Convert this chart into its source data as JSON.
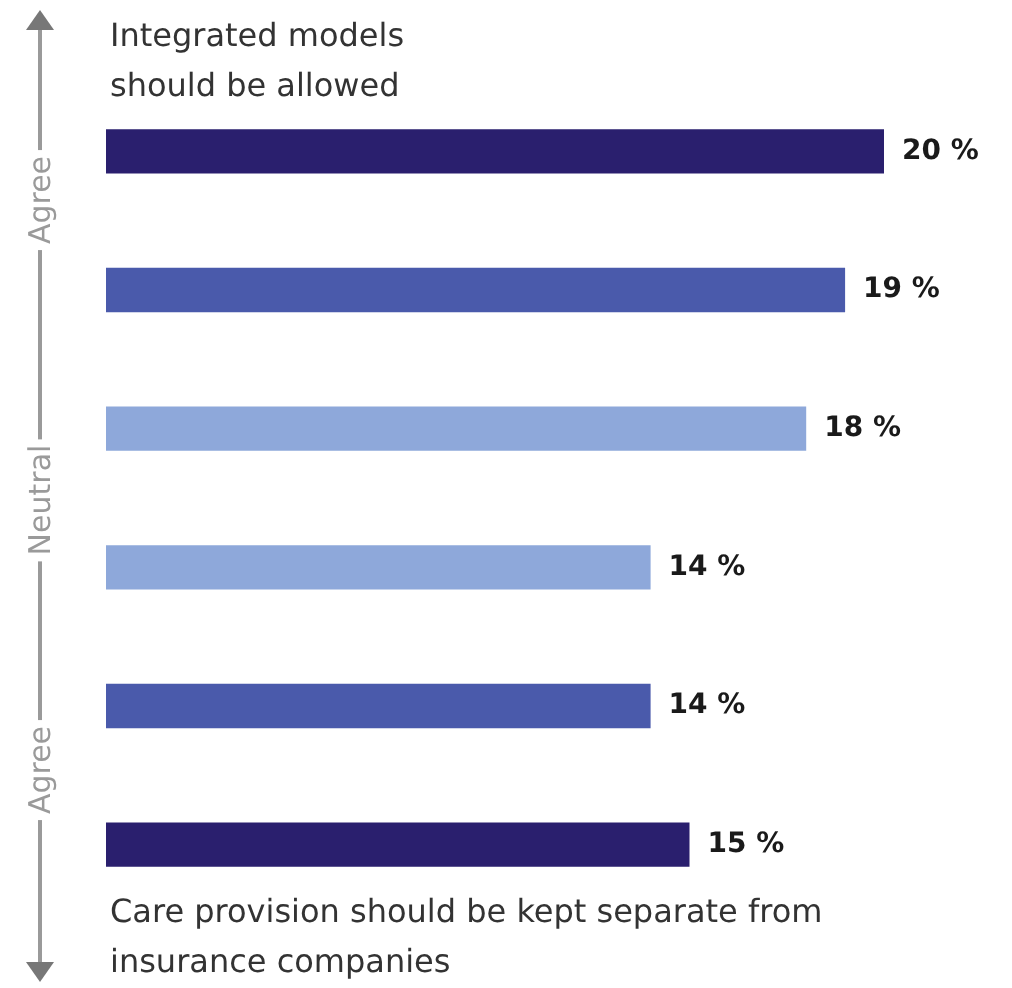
{
  "chart_data": {
    "type": "bar",
    "orientation": "horizontal",
    "categories": [
      null,
      null,
      null,
      null,
      null,
      null
    ],
    "values": [
      20,
      19,
      18,
      14,
      14,
      15
    ],
    "colors": [
      "#2a1f6e",
      "#4a5aab",
      "#8ea8da",
      "#8ea8da",
      "#4a5aab",
      "#2a1f6e"
    ],
    "value_labels": [
      "20 %",
      "19 %",
      "18 %",
      "14 %",
      "14 %",
      "15 %"
    ],
    "annotations": [
      "Integrated models should be allowed",
      "Care provision should be kept separate from insurance companies",
      "Agree",
      "Neutral",
      "Agree"
    ]
  }
}
